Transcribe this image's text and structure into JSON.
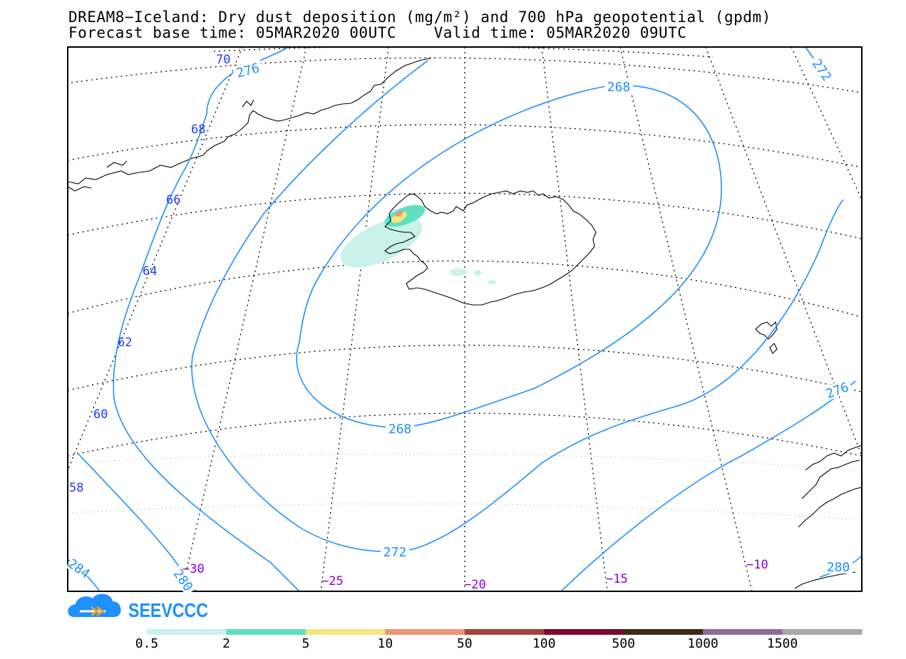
{
  "title_line1": "DREAM8−Iceland: Dry dust deposition (mg/m²) and 700 hPa geopotential (gpdm)",
  "title_line2": "Forecast base time: 05MAR2020 00UTC    Valid time: 05MAR2020 09UTC",
  "logo_text": "SEEVCCC",
  "colors": {
    "contour": "#1e90ff",
    "lat_label": "#1e3cff",
    "lon_label": "#8b00d6",
    "coast": "#000000"
  },
  "latitude_labels": [
    "70",
    "68",
    "66",
    "64",
    "62",
    "60",
    "58"
  ],
  "longitude_labels": [
    "−30",
    "−25",
    "−20",
    "−15",
    "−10"
  ],
  "contour_labels": [
    "276",
    "268",
    "272",
    "268",
    "272",
    "276",
    "280",
    "280",
    "284"
  ],
  "legend": {
    "colors": [
      "#c8f2ea",
      "#5fe0c0",
      "#f7e580",
      "#e9967a",
      "#a0453a",
      "#7a0a2e",
      "#3e2a1a",
      "#8e6a9e",
      "#a9a9a9"
    ],
    "ticks": [
      "0.5",
      "2",
      "5",
      "10",
      "50",
      "100",
      "500",
      "1000",
      "1500"
    ]
  }
}
